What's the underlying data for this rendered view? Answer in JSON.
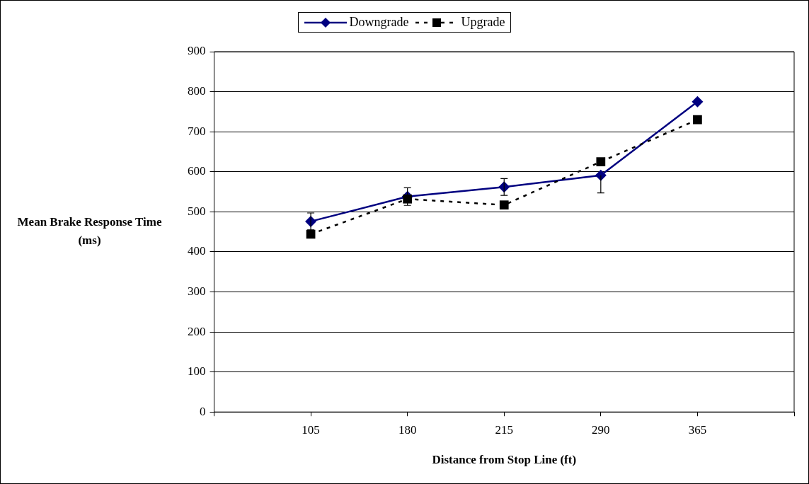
{
  "chart_data": {
    "type": "line",
    "xlabel": "Distance from Stop Line (ft)",
    "ylabel": "Mean Brake Response Time (ms)",
    "categories": [
      null,
      "105",
      "180",
      "215",
      "290",
      "365",
      null
    ],
    "ylim": [
      0,
      900
    ],
    "yticks": [
      0,
      100,
      200,
      300,
      400,
      500,
      600,
      700,
      800,
      900
    ],
    "grid": "y",
    "legend": "top",
    "series": [
      {
        "name": "Downgrade",
        "color": "#000080",
        "marker": "diamond",
        "line_style": "solid",
        "values": [
          null,
          476,
          538,
          562,
          591,
          775,
          null
        ],
        "errors": [
          null,
          21,
          22,
          21,
          [
            547,
            591
          ],
          null,
          null
        ]
      },
      {
        "name": "Upgrade",
        "color": "#000000",
        "marker": "square",
        "line_style": "dashed",
        "values": [
          null,
          444,
          532,
          517,
          625,
          730,
          null
        ]
      }
    ]
  }
}
